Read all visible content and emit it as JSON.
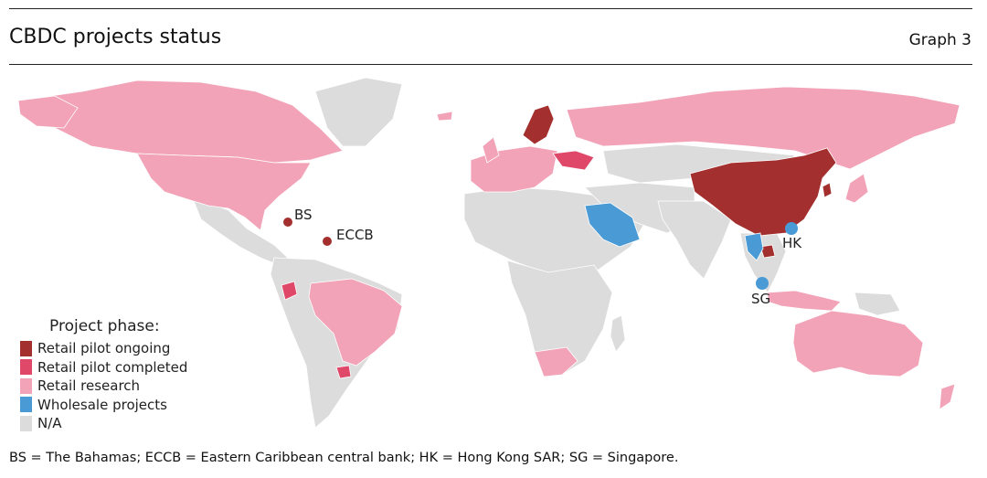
{
  "header": {
    "title": "CBDC projects status",
    "graph_number": "Graph 3"
  },
  "legend": {
    "title": "Project phase:",
    "items": [
      {
        "label": "Retail pilot ongoing",
        "color": "#a3302f"
      },
      {
        "label": "Retail pilot completed",
        "color": "#e0486a"
      },
      {
        "label": "Retail research",
        "color": "#f2a3b7"
      },
      {
        "label": "Wholesale projects",
        "color": "#4a9ad6"
      },
      {
        "label": "N/A",
        "color": "#dcdcdc"
      }
    ]
  },
  "markers": {
    "bs": "BS",
    "eccb": "ECCB",
    "hk": "HK",
    "sg": "SG"
  },
  "footnote": "BS = The Bahamas; ECCB = Eastern Caribbean central bank; HK = Hong Kong SAR; SG = Singapore."
}
